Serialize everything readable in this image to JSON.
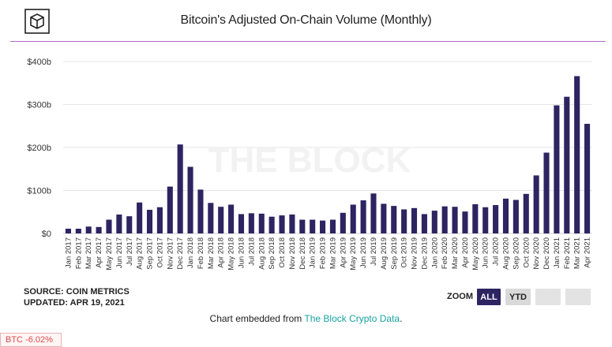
{
  "header": {
    "title": "Bitcoin's Adjusted On-Chain Volume (Monthly)",
    "logo_icon": "cube-logo-icon",
    "rule_color": "#b068c4"
  },
  "watermark": "THE BLOCK",
  "chart_data": {
    "type": "bar",
    "title": "Bitcoin's Adjusted On-Chain Volume (Monthly)",
    "xlabel": "",
    "ylabel": "",
    "ylim": [
      0,
      400
    ],
    "yticks": [
      0,
      100,
      200,
      300,
      400
    ],
    "ytick_labels": [
      "$0",
      "$100b",
      "$200b",
      "$300b",
      "$400b"
    ],
    "grid": true,
    "bar_color": "#2d2461",
    "categories": [
      "Jan 2017",
      "Feb 2017",
      "Mar 2017",
      "Apr 2017",
      "May 2017",
      "Jun 2017",
      "Jul 2017",
      "Aug 2017",
      "Sep 2017",
      "Oct 2017",
      "Nov 2017",
      "Dec 2017",
      "Jan 2018",
      "Feb 2018",
      "Mar 2018",
      "Apr 2018",
      "May 2018",
      "Jun 2018",
      "Jul 2018",
      "Aug 2018",
      "Sep 2018",
      "Oct 2018",
      "Nov 2018",
      "Dec 2018",
      "Jan 2019",
      "Feb 2019",
      "Mar 2019",
      "Apr 2019",
      "May 2019",
      "Jun 2019",
      "Jul 2019",
      "Aug 2019",
      "Sep 2019",
      "Oct 2019",
      "Nov 2019",
      "Dec 2019",
      "Jan 2020",
      "Feb 2020",
      "Mar 2020",
      "Apr 2020",
      "May 2020",
      "Jun 2020",
      "Jul 2020",
      "Aug 2020",
      "Sep 2020",
      "Oct 2020",
      "Nov 2020",
      "Dec 2020",
      "Jan 2021",
      "Feb 2021",
      "Mar 2021",
      "Apr 2021"
    ],
    "values": [
      11,
      11,
      16,
      15,
      32,
      44,
      40,
      72,
      55,
      61,
      109,
      207,
      155,
      102,
      71,
      62,
      67,
      45,
      47,
      46,
      39,
      42,
      44,
      32,
      32,
      30,
      32,
      48,
      67,
      77,
      93,
      69,
      64,
      56,
      59,
      45,
      53,
      63,
      62,
      51,
      68,
      61,
      66,
      81,
      78,
      92,
      135,
      188,
      298,
      318,
      366,
      255
    ],
    "value_unit": "billion USD"
  },
  "footer": {
    "source_line": "SOURCE: COIN METRICS",
    "updated_line": "UPDATED: APR 19, 2021",
    "zoom_label": "ZOOM",
    "zoom_all": "ALL",
    "zoom_ytd": "YTD",
    "embed_prefix": "Chart embedded from ",
    "embed_link": "The Block Crypto Data",
    "embed_suffix": ".",
    "link_color": "#19a3a3"
  },
  "ticker": {
    "text": "BTC -6.02%",
    "color": "#d94b4b"
  }
}
